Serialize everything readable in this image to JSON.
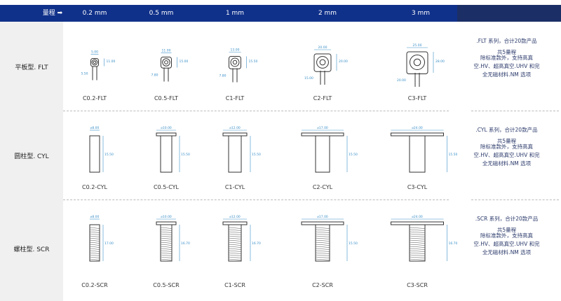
{
  "header": {
    "range_label": "量程 ➡",
    "ranges": [
      "0.2 mm",
      "0.5 mm",
      "1 mm",
      "2 mm",
      "3 mm"
    ]
  },
  "rows": [
    {
      "label": "平板型. FLT",
      "models": [
        "C0.2-FLT",
        "C0.5-FLT",
        "C1-FLT",
        "C2-FLT",
        "C3-FLT"
      ],
      "dims": [
        [
          "5.00",
          "11.00",
          "5.50"
        ],
        [
          "11.00",
          "15.00",
          "7.80"
        ],
        [
          "13.00",
          "15.50",
          "7.80"
        ],
        [
          "20.00",
          "20.00",
          "15.00"
        ],
        [
          "25.00",
          "28.00",
          "20.00"
        ]
      ],
      "info": [
        ".FLT 系列，合计20款产品",
        "共5量程",
        "除标准款外，支持高真",
        "空.HV、超高真空.UHV 和完",
        "全无磁材料.NM  选项"
      ]
    },
    {
      "label": "圆柱型. CYL",
      "models": [
        "C0.2-CYL",
        "C0.5-CYL",
        "C1-CYL",
        "C2-CYL",
        "C3-CYL"
      ],
      "dims": [
        [
          "8.00",
          "15.50"
        ],
        [
          "10.00",
          "15.50"
        ],
        [
          "12.00",
          "15.50"
        ],
        [
          "17.00",
          "15.50"
        ],
        [
          "24.00",
          "15.50"
        ]
      ],
      "info": [
        ".CYL 系列，合计20款产品",
        "共5量程",
        "除标准款外，支持高真",
        "空.HV、超高真空.UHV 和完",
        "全无磁材料.NM  选项"
      ]
    },
    {
      "label": "螺柱型. SCR",
      "models": [
        "C0.2-SCR",
        "C0.5-SCR",
        "C1-SCR",
        "C2-SCR",
        "C3-SCR"
      ],
      "dims": [
        [
          "8.00",
          "17.00"
        ],
        [
          "10.00",
          "16.70"
        ],
        [
          "12.00",
          "16.70"
        ],
        [
          "17.00",
          "15.50"
        ],
        [
          "24.00",
          "16.70"
        ]
      ],
      "info": [
        ".SCR 系列，合计20款产品",
        "共5量程",
        "除标准款外，支持高真",
        "空.HV、超高真空.UHV 和完",
        "全无磁材料.NM  选项"
      ]
    }
  ],
  "colors": {
    "header": "#10318a",
    "header_dark": "#1b2f66",
    "dim_line": "#3a8fc8",
    "text": "#2b3a6b"
  }
}
